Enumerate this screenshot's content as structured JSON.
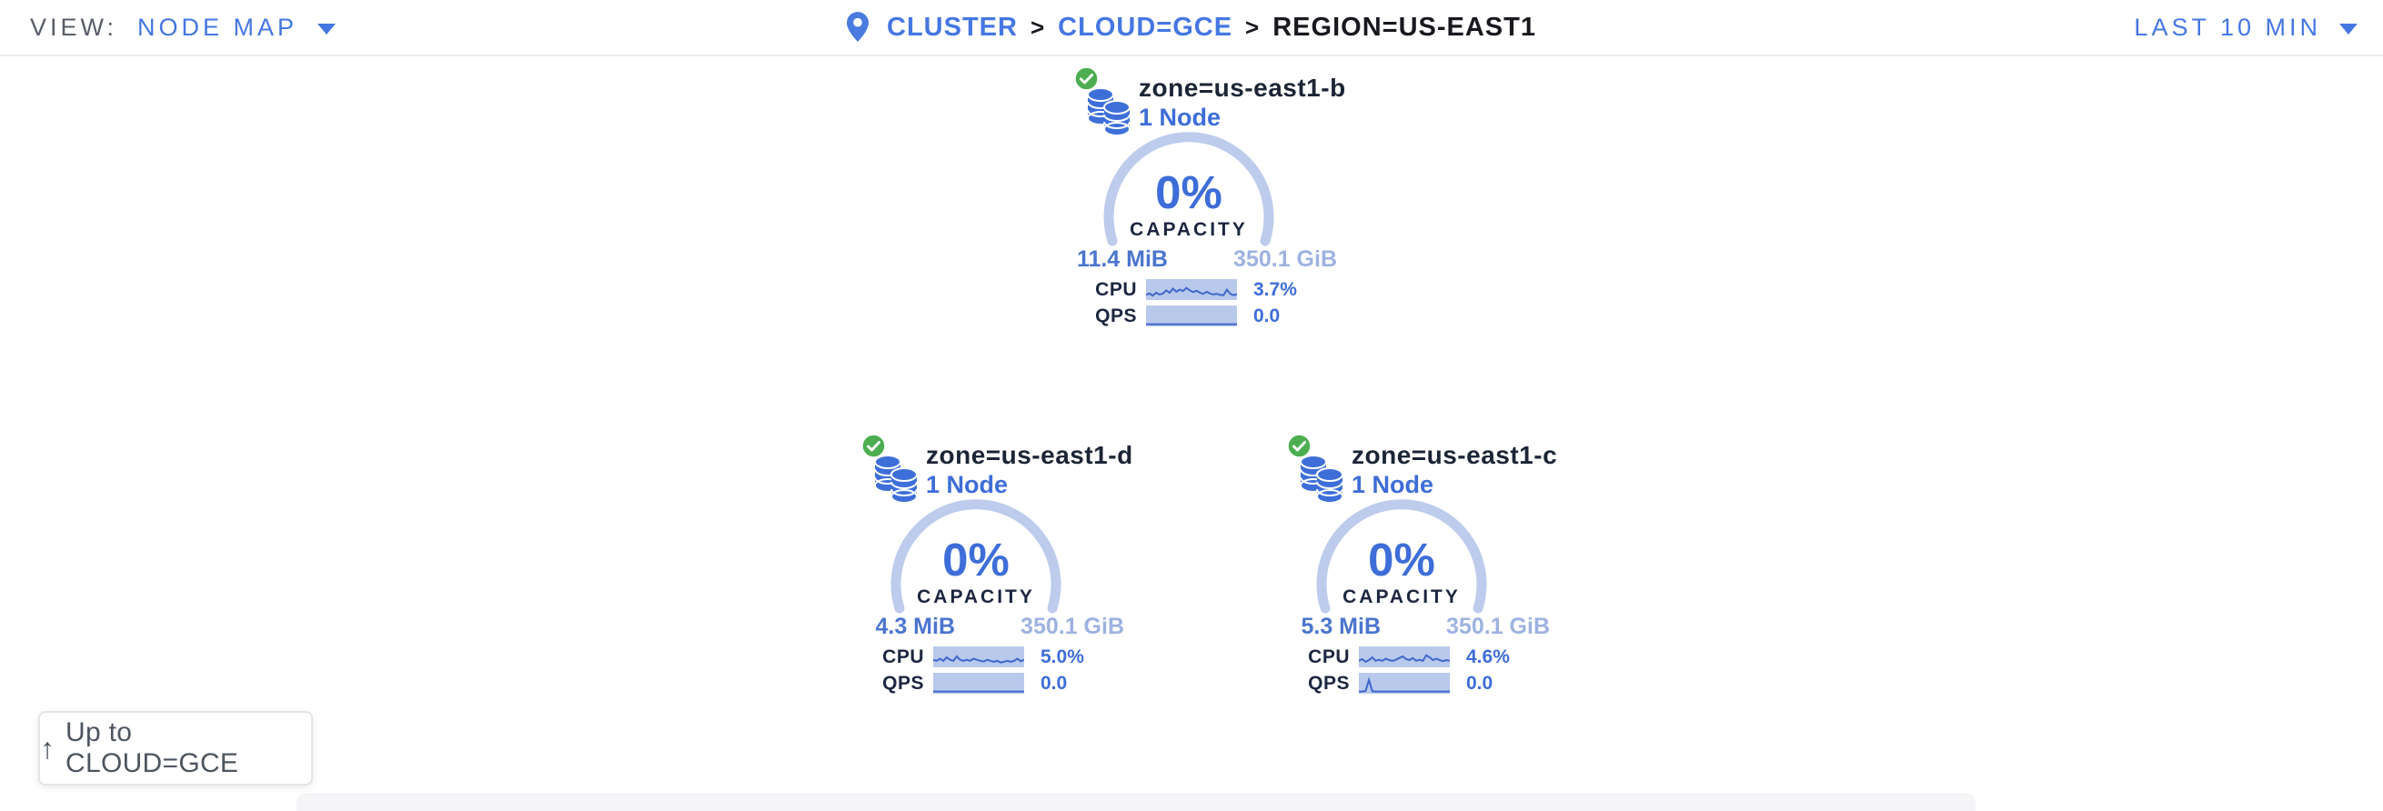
{
  "header": {
    "view_label": "VIEW:",
    "view_value": "NODE MAP",
    "breadcrumb_separator": ">",
    "breadcrumb": [
      {
        "label": "CLUSTER"
      },
      {
        "label": "CLOUD=GCE"
      },
      {
        "label": "REGION=US-EAST1"
      }
    ],
    "time_range": "LAST 10 MIN"
  },
  "zones": [
    {
      "title": "zone=us-east1-b",
      "subtitle": "1 Node",
      "status": "healthy",
      "capacity_pct": "0%",
      "capacity_label": "CAPACITY",
      "used": "11.4 MiB",
      "total": "350.1 GiB",
      "cpu_label": "CPU",
      "cpu_value": "3.7%",
      "qps_label": "QPS",
      "qps_value": "0.0",
      "cpu_spark": [
        0.22,
        0.3,
        0.18,
        0.34,
        0.24,
        0.3,
        0.48,
        0.34,
        0.58,
        0.4,
        0.52,
        0.44,
        0.62,
        0.48,
        0.38,
        0.46,
        0.34,
        0.28,
        0.4,
        0.3,
        0.24,
        0.28,
        0.22,
        0.2,
        0.52,
        0.28,
        0.2,
        0.26
      ],
      "qps_spark": [
        0.05,
        0.05,
        0.05,
        0.05,
        0.05,
        0.05,
        0.05,
        0.05,
        0.05,
        0.05,
        0.05,
        0.05,
        0.05,
        0.05,
        0.05,
        0.05,
        0.05,
        0.05,
        0.05,
        0.05,
        0.05,
        0.05,
        0.05,
        0.05,
        0.05,
        0.05,
        0.05,
        0.05
      ]
    },
    {
      "title": "zone=us-east1-d",
      "subtitle": "1 Node",
      "status": "healthy",
      "capacity_pct": "0%",
      "capacity_label": "CAPACITY",
      "used": "4.3 MiB",
      "total": "350.1 GiB",
      "cpu_label": "CPU",
      "cpu_value": "5.0%",
      "qps_label": "QPS",
      "qps_value": "0.0",
      "cpu_spark": [
        0.36,
        0.3,
        0.42,
        0.3,
        0.5,
        0.36,
        0.3,
        0.56,
        0.36,
        0.3,
        0.36,
        0.3,
        0.42,
        0.36,
        0.3,
        0.26,
        0.36,
        0.3,
        0.24,
        0.3,
        0.2,
        0.24,
        0.3,
        0.24,
        0.3,
        0.42,
        0.28,
        0.36
      ],
      "qps_spark": [
        0.05,
        0.05,
        0.05,
        0.05,
        0.05,
        0.05,
        0.05,
        0.05,
        0.05,
        0.05,
        0.05,
        0.05,
        0.05,
        0.05,
        0.05,
        0.05,
        0.05,
        0.05,
        0.05,
        0.05,
        0.05,
        0.05,
        0.05,
        0.05,
        0.05,
        0.05,
        0.05,
        0.05
      ]
    },
    {
      "title": "zone=us-east1-c",
      "subtitle": "1 Node",
      "status": "healthy",
      "capacity_pct": "0%",
      "capacity_label": "CAPACITY",
      "used": "5.3 MiB",
      "total": "350.1 GiB",
      "cpu_label": "CPU",
      "cpu_value": "4.6%",
      "qps_label": "QPS",
      "qps_value": "0.0",
      "cpu_spark": [
        0.3,
        0.4,
        0.24,
        0.34,
        0.5,
        0.3,
        0.36,
        0.3,
        0.42,
        0.34,
        0.3,
        0.36,
        0.46,
        0.56,
        0.4,
        0.34,
        0.46,
        0.3,
        0.36,
        0.3,
        0.62,
        0.5,
        0.34,
        0.42,
        0.34,
        0.28,
        0.34,
        0.3
      ],
      "qps_spark": [
        0.05,
        0.05,
        0.08,
        0.72,
        0.06,
        0.05,
        0.05,
        0.05,
        0.05,
        0.05,
        0.05,
        0.05,
        0.05,
        0.05,
        0.05,
        0.05,
        0.05,
        0.05,
        0.05,
        0.05,
        0.05,
        0.05,
        0.05,
        0.05,
        0.05,
        0.05,
        0.05,
        0.05
      ]
    }
  ],
  "up_button": {
    "arrow": "↑",
    "label": "Up to CLOUD=GCE"
  },
  "colors": {
    "primary_blue": "#3d6dd8",
    "link_blue": "#4577e2",
    "navy_text": "#1b2640",
    "gauge_ring": "#bdcbec",
    "spark_bg": "#b9c9ec",
    "spark_line": "#3f66cc",
    "used_value": "#4a74cf",
    "total_value": "#9db2e0",
    "healthy_green": "#4cae50",
    "db_icon_blue": "#3e6fd9"
  }
}
